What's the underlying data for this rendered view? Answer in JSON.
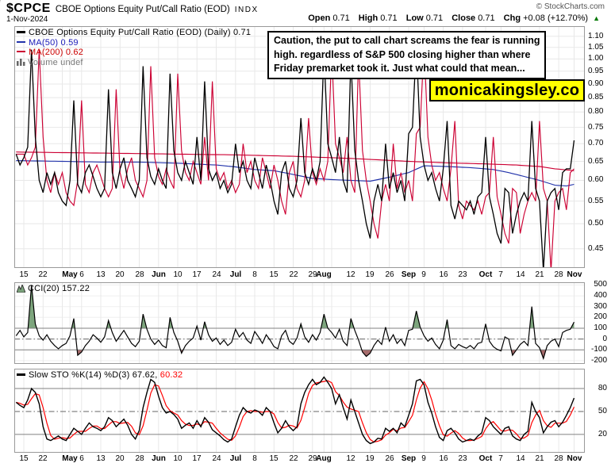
{
  "header": {
    "symbol": "$CPCE",
    "title": "CBOE Options Equity Put/Call Ratio (EOD)",
    "exchange": "INDX",
    "date": "1-Nov-2024",
    "copyright": "© StockCharts.com",
    "ohlc": {
      "open_label": "Open",
      "open": "0.71",
      "high_label": "High",
      "high": "0.71",
      "low_label": "Low",
      "low": "0.71",
      "close_label": "Close",
      "close": "0.71",
      "chg_label": "Chg",
      "chg": "+0.08 (+12.70%)",
      "up_arrow": "▲"
    }
  },
  "main_legend": {
    "price": "CBOE Options Equity Put/Call Ratio (EOD) (Daily) 0.71",
    "ma50": "MA(50) 0.59",
    "ma200": "MA(200) 0.62",
    "volume": "Volume undef"
  },
  "cci_legend": "CCI(20) 157.22",
  "sto_legend": {
    "black_part": "Slow STO %K(14) %D(3) 67.62,",
    "red_part": "60.32"
  },
  "annotation": {
    "lines": [
      "Caution, the put to call chart screams the fear is running",
      "high. regardless of S&P 500 closing higher than where",
      "Friday premarket took it. Just what could that mean..."
    ]
  },
  "watermark": {
    "text": "monicakingsley.co"
  },
  "colors": {
    "price": "#000000",
    "price_lag": "#cc0033",
    "ma50": "#2233aa",
    "ma200": "#cc0033",
    "grid": "#e8e8e8",
    "panel_border": "#999999",
    "threshold": "#808080",
    "dashdot": "#666666",
    "cci_fill_up": "#7da57d",
    "cci_fill_down": "#a56b6b",
    "sto_k": "#000000",
    "sto_d": "#ff0000",
    "up_green": "#007700",
    "watermark_bg": "#ffff00",
    "legend_ma50_text": "#1a1ab8",
    "legend_ma200_text": "#cc0000",
    "muted": "#777777",
    "copyright": "#555555"
  },
  "chart_data": [
    {
      "panel": "price",
      "type": "line",
      "log_scale": true,
      "title": "CBOE Options Equity Put/Call Ratio (EOD) (Daily)",
      "last_value": 0.71,
      "y_ticks": [
        1.1,
        1.05,
        1.0,
        0.95,
        0.9,
        0.85,
        0.8,
        0.75,
        0.7,
        0.65,
        0.6,
        0.55,
        0.5,
        0.45
      ],
      "y_domain": [
        0.415,
        1.148
      ],
      "x_start_day": -2,
      "x_end_day": 143,
      "x_labels": [
        {
          "label": "15",
          "day": 0,
          "bold": false
        },
        {
          "label": "22",
          "day": 5,
          "bold": false
        },
        {
          "label": "May",
          "day": 12,
          "bold": true
        },
        {
          "label": "6",
          "day": 15,
          "bold": false
        },
        {
          "label": "13",
          "day": 20,
          "bold": false
        },
        {
          "label": "20",
          "day": 25,
          "bold": false
        },
        {
          "label": "28",
          "day": 30,
          "bold": false
        },
        {
          "label": "Jun",
          "day": 35,
          "bold": true
        },
        {
          "label": "10",
          "day": 40,
          "bold": false
        },
        {
          "label": "17",
          "day": 45,
          "bold": false
        },
        {
          "label": "24",
          "day": 50,
          "bold": false
        },
        {
          "label": "Jul",
          "day": 55,
          "bold": true
        },
        {
          "label": "8",
          "day": 60,
          "bold": false
        },
        {
          "label": "15",
          "day": 65,
          "bold": false
        },
        {
          "label": "22",
          "day": 70,
          "bold": false
        },
        {
          "label": "29",
          "day": 75,
          "bold": false
        },
        {
          "label": "Aug",
          "day": 78,
          "bold": true
        },
        {
          "label": "12",
          "day": 85,
          "bold": false
        },
        {
          "label": "19",
          "day": 90,
          "bold": false
        },
        {
          "label": "26",
          "day": 95,
          "bold": false
        },
        {
          "label": "Sep",
          "day": 100,
          "bold": true
        },
        {
          "label": "9",
          "day": 104,
          "bold": false
        },
        {
          "label": "16",
          "day": 109,
          "bold": false
        },
        {
          "label": "23",
          "day": 114,
          "bold": false
        },
        {
          "label": "Oct",
          "day": 120,
          "bold": true
        },
        {
          "label": "7",
          "day": 124,
          "bold": false
        },
        {
          "label": "14",
          "day": 129,
          "bold": false
        },
        {
          "label": "21",
          "day": 134,
          "bold": false
        },
        {
          "label": "28",
          "day": 139,
          "bold": false
        },
        {
          "label": "Nov",
          "day": 143,
          "bold": true
        }
      ],
      "x_grid_days": [
        0,
        5,
        10,
        12,
        15,
        20,
        25,
        30,
        35,
        40,
        45,
        50,
        55,
        60,
        65,
        70,
        75,
        78,
        80,
        85,
        90,
        95,
        100,
        104,
        109,
        114,
        120,
        124,
        129,
        134,
        139,
        143
      ],
      "series": [
        {
          "name": "price",
          "color": "#000000",
          "width": 1.3,
          "values": [
            0.67,
            0.64,
            0.66,
            0.69,
            1.04,
            0.72,
            0.6,
            0.57,
            0.62,
            0.59,
            0.62,
            0.57,
            0.55,
            0.54,
            0.6,
            0.84,
            0.59,
            0.57,
            0.62,
            0.64,
            0.61,
            0.58,
            0.56,
            0.58,
            0.88,
            0.62,
            0.58,
            0.63,
            0.66,
            0.6,
            0.58,
            0.56,
            0.6,
            0.97,
            0.66,
            0.61,
            0.59,
            0.63,
            0.6,
            0.58,
            0.94,
            0.68,
            0.62,
            0.6,
            0.65,
            0.62,
            0.59,
            0.72,
            0.6,
            0.91,
            0.63,
            0.6,
            0.62,
            0.58,
            0.6,
            0.57,
            0.59,
            0.7,
            0.62,
            0.65,
            0.6,
            0.58,
            0.66,
            0.62,
            0.58,
            0.64,
            0.6,
            0.55,
            0.52,
            0.62,
            0.65,
            0.58,
            0.56,
            0.6,
            0.78,
            0.62,
            0.59,
            0.63,
            0.6,
            0.65,
            1.04,
            0.7,
            0.66,
            0.62,
            0.72,
            0.6,
            0.57,
            1.01,
            0.68,
            0.6,
            0.55,
            0.5,
            0.47,
            0.55,
            0.59,
            0.55,
            0.7,
            0.58,
            0.62,
            0.57,
            0.6,
            0.55,
            0.73,
            0.75,
            1.07,
            0.72,
            0.64,
            0.6,
            0.62,
            0.58,
            0.55,
            0.63,
            0.77,
            0.54,
            0.51,
            0.55,
            0.54,
            0.53,
            0.55,
            0.52,
            0.56,
            0.57,
            0.72,
            0.56,
            0.52,
            0.48,
            0.46,
            0.58,
            0.57,
            0.48,
            0.52,
            0.55,
            0.57,
            0.55,
            0.77,
            0.58,
            0.55,
            0.41,
            0.55,
            0.57,
            0.58,
            0.53,
            0.62,
            0.63,
            0.63,
            0.71
          ]
        },
        {
          "name": "price_lag",
          "color": "#cc0033",
          "width": 1.15,
          "derived_from": "price",
          "shift_days": 2
        },
        {
          "name": "ma50",
          "color": "#2233aa",
          "width": 1.15,
          "legend_value": 0.59,
          "control_points": [
            [
              -2,
              0.652
            ],
            [
              10,
              0.65
            ],
            [
              20,
              0.648
            ],
            [
              30,
              0.648
            ],
            [
              40,
              0.645
            ],
            [
              50,
              0.64
            ],
            [
              55,
              0.635
            ],
            [
              60,
              0.628
            ],
            [
              65,
              0.625
            ],
            [
              70,
              0.615
            ],
            [
              75,
              0.605
            ],
            [
              80,
              0.602
            ],
            [
              85,
              0.6
            ],
            [
              90,
              0.598
            ],
            [
              95,
              0.608
            ],
            [
              100,
              0.62
            ],
            [
              104,
              0.638
            ],
            [
              110,
              0.636
            ],
            [
              116,
              0.633
            ],
            [
              122,
              0.628
            ],
            [
              126,
              0.62
            ],
            [
              130,
              0.61
            ],
            [
              134,
              0.6
            ],
            [
              138,
              0.588
            ],
            [
              141,
              0.586
            ],
            [
              143,
              0.59
            ]
          ]
        },
        {
          "name": "ma200",
          "color": "#cc0033",
          "width": 1.15,
          "legend_value": 0.62,
          "control_points": [
            [
              -2,
              0.676
            ],
            [
              20,
              0.673
            ],
            [
              40,
              0.67
            ],
            [
              55,
              0.668
            ],
            [
              70,
              0.664
            ],
            [
              85,
              0.658
            ],
            [
              100,
              0.65
            ],
            [
              110,
              0.646
            ],
            [
              120,
              0.643
            ],
            [
              128,
              0.64
            ],
            [
              134,
              0.636
            ],
            [
              138,
              0.63
            ],
            [
              143,
              0.625
            ]
          ]
        }
      ]
    },
    {
      "panel": "cci",
      "type": "line",
      "title": "CCI(20)",
      "last_value": 157.22,
      "y_ticks": [
        500,
        400,
        300,
        200,
        100,
        0,
        -100,
        -200
      ],
      "y_domain": [
        -230,
        525
      ],
      "thresholds": {
        "upper": 100,
        "mid": 0,
        "lower": -100
      },
      "x_start_day": -2,
      "values": [
        30,
        80,
        20,
        60,
        500,
        140,
        30,
        -10,
        40,
        -20,
        -60,
        -90,
        -60,
        -40,
        30,
        190,
        -150,
        -120,
        -60,
        -20,
        40,
        10,
        -30,
        20,
        170,
        60,
        -20,
        30,
        80,
        20,
        -40,
        -70,
        -20,
        230,
        90,
        0,
        -50,
        -10,
        -60,
        -80,
        200,
        60,
        -20,
        -130,
        -60,
        -20,
        10,
        120,
        -10,
        160,
        40,
        -20,
        10,
        -50,
        -10,
        -60,
        -30,
        90,
        20,
        60,
        -10,
        -40,
        70,
        20,
        -40,
        40,
        -10,
        -70,
        -90,
        30,
        80,
        -20,
        -50,
        10,
        140,
        20,
        -30,
        40,
        -10,
        60,
        230,
        100,
        60,
        10,
        90,
        -20,
        -60,
        190,
        80,
        -10,
        -120,
        -160,
        -130,
        -60,
        -10,
        -50,
        110,
        -20,
        40,
        -40,
        0,
        -60,
        80,
        90,
        260,
        110,
        30,
        -20,
        10,
        -50,
        -90,
        -10,
        180,
        -60,
        -90,
        -50,
        -70,
        -85,
        -60,
        -90,
        -40,
        -30,
        140,
        -20,
        -70,
        -95,
        -110,
        20,
        0,
        -150,
        -100,
        -50,
        -20,
        -60,
        300,
        -40,
        -80,
        -180,
        -60,
        -20,
        0,
        -70,
        60,
        80,
        90,
        157
      ]
    },
    {
      "panel": "stochastic",
      "type": "line",
      "title": "Slow STO %K(14) %D(3)",
      "k_last": 67.62,
      "d_last": 60.32,
      "y_ticks": [
        80,
        50,
        20
      ],
      "y_domain": [
        -4,
        106
      ],
      "thresholds": {
        "upper": 80,
        "mid": 50,
        "lower": 20
      },
      "x_start_day": -2,
      "d_derivation": "sma3_of_k",
      "k_values": [
        62,
        58,
        55,
        65,
        80,
        75,
        60,
        30,
        14,
        12,
        15,
        18,
        14,
        12,
        20,
        28,
        24,
        20,
        28,
        35,
        30,
        28,
        25,
        30,
        42,
        38,
        30,
        35,
        40,
        32,
        20,
        14,
        25,
        55,
        75,
        92,
        88,
        70,
        55,
        48,
        50,
        46,
        40,
        28,
        32,
        35,
        28,
        38,
        30,
        42,
        36,
        26,
        22,
        18,
        13,
        10,
        14,
        30,
        45,
        55,
        50,
        48,
        52,
        50,
        45,
        55,
        50,
        35,
        22,
        28,
        38,
        30,
        25,
        30,
        60,
        75,
        85,
        92,
        85,
        88,
        95,
        88,
        80,
        60,
        72,
        55,
        40,
        65,
        50,
        35,
        20,
        12,
        8,
        10,
        15,
        14,
        28,
        24,
        28,
        22,
        35,
        30,
        45,
        60,
        90,
        92,
        85,
        62,
        48,
        30,
        16,
        12,
        25,
        28,
        22,
        14,
        10,
        12,
        14,
        12,
        18,
        22,
        42,
        38,
        30,
        25,
        20,
        28,
        30,
        18,
        14,
        12,
        20,
        24,
        62,
        50,
        42,
        22,
        30,
        36,
        38,
        30,
        36,
        45,
        55,
        67.62
      ]
    }
  ]
}
